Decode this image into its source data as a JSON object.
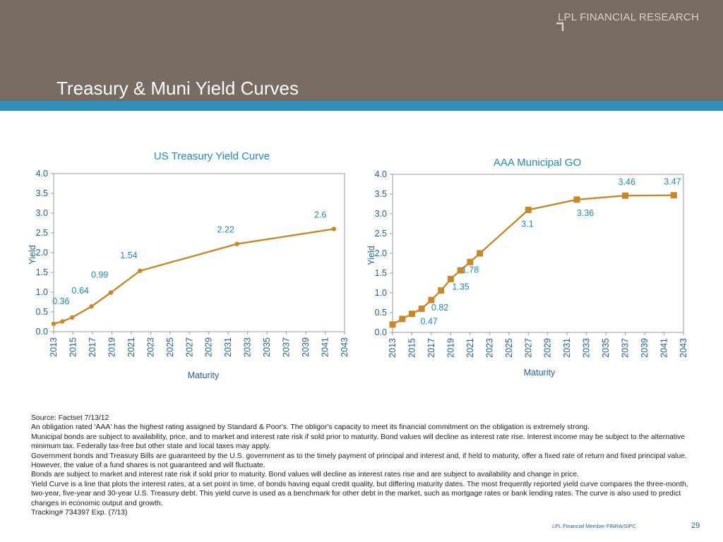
{
  "header": {
    "brand": "LPL FINANCIAL RESEARCH",
    "title": "Treasury & Muni Yield Curves",
    "colors": {
      "band": "#786c62",
      "accent_bar": "#2e8fb8",
      "title_text": "#ffffff"
    }
  },
  "chart_data": [
    {
      "type": "line",
      "title": "US Treasury Yield Curve",
      "xlabel": "Maturity",
      "ylabel": "Yield",
      "xlim": [
        2013,
        2043
      ],
      "ylim": [
        0,
        4
      ],
      "ytick_labels": [
        "0.0",
        "0.5",
        "1.0",
        "1.5",
        "2.0",
        "2.5",
        "3.0",
        "3.5",
        "4.0"
      ],
      "xtick_labels": [
        "2013",
        "2015",
        "2017",
        "2019",
        "2021",
        "2023",
        "2025",
        "2027",
        "2029",
        "2031",
        "2033",
        "2035",
        "2037",
        "2039",
        "2041",
        "2043"
      ],
      "grid": false,
      "marker": "circle",
      "color": "#c8882a",
      "series": [
        {
          "x": [
            2013.0,
            2013.9,
            2014.9,
            2016.9,
            2018.9,
            2021.9,
            2031.9,
            2041.9
          ],
          "values": [
            0.2,
            0.26,
            0.36,
            0.64,
            0.99,
            1.54,
            2.22,
            2.6
          ]
        }
      ],
      "data_labels": [
        {
          "x": 2014.9,
          "y": 0.36,
          "text": "0.36"
        },
        {
          "x": 2016.9,
          "y": 0.64,
          "text": "0.64"
        },
        {
          "x": 2018.9,
          "y": 0.99,
          "text": "0.99"
        },
        {
          "x": 2021.9,
          "y": 1.54,
          "text": "1.54"
        },
        {
          "x": 2031.9,
          "y": 2.22,
          "text": "2.22"
        },
        {
          "x": 2041.9,
          "y": 2.6,
          "text": "2.6"
        }
      ]
    },
    {
      "type": "line",
      "title": "AAA Municipal GO",
      "xlabel": "Maturity",
      "ylabel": "Yield",
      "xlim": [
        2013,
        2043
      ],
      "ylim": [
        0,
        4
      ],
      "ytick_labels": [
        "0.0",
        "0.5",
        "1.0",
        "1.5",
        "2.0",
        "2.5",
        "3.0",
        "3.5",
        "4.0"
      ],
      "xtick_labels": [
        "2013",
        "2015",
        "2017",
        "2019",
        "2021",
        "2023",
        "2025",
        "2027",
        "2029",
        "2031",
        "2033",
        "2035",
        "2037",
        "2039",
        "2041",
        "2043"
      ],
      "grid": false,
      "marker": "square",
      "color": "#c8882a",
      "series": [
        {
          "x": [
            2013,
            2014,
            2015,
            2016,
            2017,
            2018,
            2019,
            2020,
            2021,
            2022,
            2027,
            2032,
            2037,
            2042
          ],
          "values": [
            0.2,
            0.34,
            0.47,
            0.6,
            0.82,
            1.06,
            1.35,
            1.57,
            1.78,
            2.0,
            3.1,
            3.36,
            3.46,
            3.47
          ]
        }
      ],
      "data_labels": [
        {
          "x": 2015,
          "y": 0.47,
          "text": "0.47"
        },
        {
          "x": 2017,
          "y": 0.82,
          "text": "0.82"
        },
        {
          "x": 2019,
          "y": 1.35,
          "text": "1.35"
        },
        {
          "x": 2021,
          "y": 1.78,
          "text": "1.78"
        },
        {
          "x": 2027,
          "y": 3.1,
          "text": "3.1"
        },
        {
          "x": 2032,
          "y": 3.36,
          "text": "3.36"
        },
        {
          "x": 2037,
          "y": 3.46,
          "text": "3.46"
        },
        {
          "x": 2042,
          "y": 3.47,
          "text": "3.47"
        }
      ]
    }
  ],
  "footnotes": {
    "lines": [
      "Source: Factset 7/13/12",
      "An obligation rated 'AAA' has the highest rating assigned by Standard & Poor's. The obligor's capacity to meet its financial commitment on the obligation is extremely strong.",
      "Municipal bonds are subject to availability, price, and to market and interest rate risk if sold prior to maturity. Bond values will decline as interest rate rise. Interest income may be subject to the alternative minimum tax. Federally tax-free but other state and local taxes may apply.",
      "Government bonds and Treasury Bills are guaranteed by the U.S. government as to the timely payment of principal and interest and, if held to maturity, offer a fixed rate of return and fixed principal value. However, the value of a fund shares is not guaranteed and will fluctuate.",
      "Bonds are subject to market and interest rate risk if sold prior to maturity. Bond values will decline as interest rates rise and are subject to availability and change in price.",
      "Yield Curve is a line that plots the interest rates, at a set point in time, of bonds having equal credit quality, but differing maturity dates. The most frequently reported yield curve compares the three-month, two-year, five-year and 30-year U.S. Treasury debt. This yield curve is used as a benchmark for other debt in the market, such as mortgage rates or bank lending rates. The curve is also used to predict changes in economic output and growth.",
      "Tracking# 734397 Exp. (7/13)"
    ]
  },
  "footer": {
    "member": "LPL Financial Member FINRA/SIPC",
    "page_number": "29"
  }
}
